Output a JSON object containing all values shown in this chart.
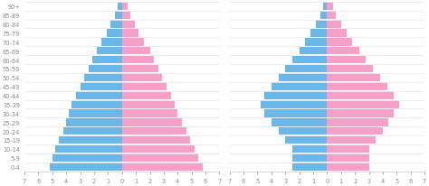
{
  "age_groups": [
    "0-4",
    "5-9",
    "10-14",
    "15-19",
    "20-24",
    "25-29",
    "30-34",
    "35-39",
    "40-44",
    "45-49",
    "50-54",
    "55-59",
    "60-64",
    "65-69",
    "70-74",
    "75-79",
    "80-84",
    "85-89",
    "90+"
  ],
  "pyramid1_male": [
    5.2,
    5.0,
    4.8,
    4.5,
    4.2,
    4.0,
    3.8,
    3.6,
    3.3,
    3.0,
    2.7,
    2.4,
    2.1,
    1.8,
    1.5,
    1.1,
    0.8,
    0.5,
    0.3
  ],
  "pyramid1_female": [
    5.8,
    5.5,
    5.2,
    4.9,
    4.6,
    4.3,
    4.0,
    3.8,
    3.5,
    3.2,
    2.9,
    2.6,
    2.3,
    2.0,
    1.6,
    1.2,
    0.9,
    0.6,
    0.4
  ],
  "pyramid2_male": [
    2.5,
    2.5,
    2.5,
    3.0,
    3.5,
    4.0,
    4.5,
    4.8,
    4.5,
    4.0,
    3.5,
    3.0,
    2.5,
    2.0,
    1.6,
    1.2,
    0.8,
    0.5,
    0.3
  ],
  "pyramid2_female": [
    3.0,
    3.0,
    3.0,
    3.5,
    4.0,
    4.4,
    4.8,
    5.2,
    4.8,
    4.3,
    3.8,
    3.3,
    2.8,
    2.3,
    1.8,
    1.4,
    1.0,
    0.6,
    0.4
  ],
  "male_color": "#6bb8e8",
  "female_color": "#f5a0c8",
  "bg_color": "#ffffff",
  "xlim": 7,
  "bar_height": 0.88,
  "fontsize_labels": 4.8,
  "fontsize_ticks": 4.8,
  "grid_color": "#e8e8e8",
  "tick_color": "#888888"
}
